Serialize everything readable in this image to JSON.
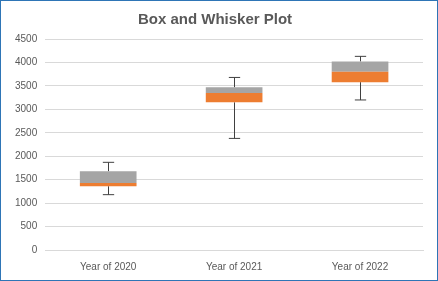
{
  "chart_data": {
    "type": "boxplot",
    "title": "Box and Whisker Plot",
    "categories": [
      "Year of 2020",
      "Year of 2021",
      "Year of 2022"
    ],
    "values": [
      {
        "min": 1180,
        "q1": 1360,
        "median": 1430,
        "q3": 1680,
        "max": 1870
      },
      {
        "min": 2380,
        "q1": 3150,
        "median": 3350,
        "q3": 3470,
        "max": 3680
      },
      {
        "min": 3200,
        "q1": 3580,
        "median": 3800,
        "q3": 4020,
        "max": 4130
      }
    ],
    "colors": [
      "#ed7d31",
      "#a5a5a5"
    ],
    "ylim": [
      0,
      4500
    ],
    "yticks": [
      0,
      500,
      1000,
      1500,
      2000,
      2500,
      3000,
      3500,
      4000,
      4500
    ],
    "grid": true
  }
}
